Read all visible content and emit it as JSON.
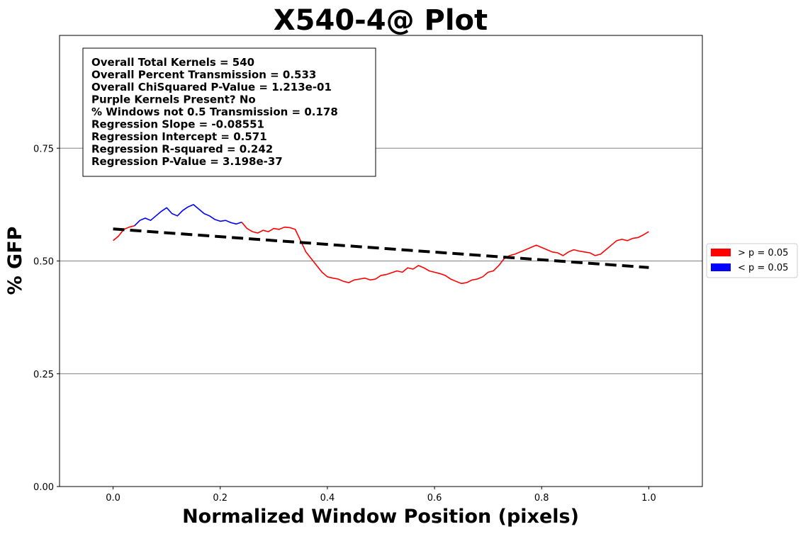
{
  "chart_data": {
    "type": "line",
    "title": "X540-4@ Plot",
    "xlabel": "Normalized Window Position (pixels)",
    "ylabel": "% GFP",
    "xlim": [
      -0.1,
      1.1
    ],
    "ylim": [
      0,
      1.0
    ],
    "xticks": [
      "0.0",
      "0.2",
      "0.4",
      "0.6",
      "0.8",
      "1.0"
    ],
    "xtick_values": [
      0.0,
      0.2,
      0.4,
      0.6,
      0.8,
      1.0
    ],
    "yticks": [
      "0.00",
      "0.25",
      "0.50",
      "0.75"
    ],
    "ytick_values": [
      0.0,
      0.25,
      0.5,
      0.75
    ],
    "grid": "horizontal",
    "stats_lines": [
      "Overall Total Kernels = 540",
      "Overall Percent Transmission = 0.533",
      "Overall ChiSquared P-Value = 1.213e-01",
      "Purple Kernels Present? No",
      "% Windows not 0.5 Transmission = 0.178",
      "Regression Slope = -0.08551",
      "Regression Intercept = 0.571",
      "Regression R-squared = 0.242",
      "Regression P-Value = 3.198e-37"
    ],
    "regression": {
      "slope": -0.08551,
      "intercept": 0.571,
      "x_range": [
        0.0,
        1.0
      ],
      "color": "#000000"
    },
    "legend": {
      "placement": "right",
      "entries": [
        {
          "label": "> p = 0.05",
          "color": "#ff0000"
        },
        {
          "label": "< p = 0.05",
          "color": "#0000ff"
        }
      ]
    },
    "series": [
      {
        "color": "#ff0000",
        "x": [
          0.0,
          0.01,
          0.02,
          0.03,
          0.04
        ],
        "y": [
          0.545,
          0.555,
          0.57,
          0.575,
          0.578
        ]
      },
      {
        "color": "#0000ff",
        "x": [
          0.04,
          0.05,
          0.06,
          0.07,
          0.08,
          0.09,
          0.1,
          0.11,
          0.12,
          0.13,
          0.14,
          0.15,
          0.16,
          0.17,
          0.18,
          0.19,
          0.2,
          0.21,
          0.22,
          0.23,
          0.24
        ],
        "y": [
          0.578,
          0.59,
          0.595,
          0.59,
          0.6,
          0.61,
          0.618,
          0.605,
          0.6,
          0.612,
          0.62,
          0.625,
          0.615,
          0.605,
          0.6,
          0.592,
          0.588,
          0.59,
          0.585,
          0.582,
          0.586
        ]
      },
      {
        "color": "#ff0000",
        "x": [
          0.24,
          0.25,
          0.26,
          0.27,
          0.28,
          0.29,
          0.3,
          0.31,
          0.32,
          0.33,
          0.34,
          0.35,
          0.36,
          0.37,
          0.38,
          0.39,
          0.4,
          0.41,
          0.42,
          0.43,
          0.44,
          0.45,
          0.46,
          0.47,
          0.48,
          0.49,
          0.5,
          0.51,
          0.52,
          0.53,
          0.54,
          0.55,
          0.56,
          0.57,
          0.58,
          0.59,
          0.6,
          0.61,
          0.62,
          0.63,
          0.64,
          0.65,
          0.66,
          0.67,
          0.68,
          0.69,
          0.7,
          0.71,
          0.72,
          0.73,
          0.74,
          0.75,
          0.76,
          0.77,
          0.78,
          0.79,
          0.8,
          0.81,
          0.82,
          0.83,
          0.84,
          0.85,
          0.86,
          0.87,
          0.88,
          0.89,
          0.9,
          0.91,
          0.92,
          0.93,
          0.94,
          0.95,
          0.96,
          0.97,
          0.98,
          0.99,
          1.0
        ],
        "y": [
          0.586,
          0.572,
          0.565,
          0.562,
          0.568,
          0.565,
          0.572,
          0.57,
          0.575,
          0.574,
          0.57,
          0.545,
          0.52,
          0.505,
          0.49,
          0.475,
          0.465,
          0.462,
          0.46,
          0.455,
          0.452,
          0.458,
          0.46,
          0.462,
          0.458,
          0.46,
          0.468,
          0.47,
          0.474,
          0.478,
          0.475,
          0.485,
          0.482,
          0.49,
          0.485,
          0.478,
          0.475,
          0.472,
          0.468,
          0.46,
          0.455,
          0.45,
          0.452,
          0.458,
          0.46,
          0.465,
          0.475,
          0.478,
          0.49,
          0.505,
          0.512,
          0.515,
          0.52,
          0.525,
          0.53,
          0.535,
          0.53,
          0.525,
          0.52,
          0.518,
          0.512,
          0.52,
          0.525,
          0.522,
          0.52,
          0.518,
          0.512,
          0.515,
          0.525,
          0.535,
          0.545,
          0.548,
          0.545,
          0.55,
          0.552,
          0.558,
          0.565
        ]
      }
    ]
  }
}
